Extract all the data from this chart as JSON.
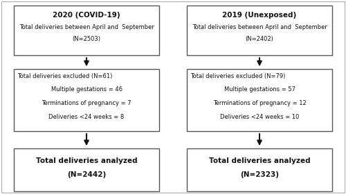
{
  "left_col": {
    "title": "2020 (COVID-19)",
    "box1_lines": [
      "Total deliveries between April and  September",
      "(N=2503)"
    ],
    "box2_line0": "Total deliveries excluded (N=61)",
    "box2_lines": [
      "Multiple gestations = 46",
      "Terminations of pregnancy = 7",
      "Deliveries <24 weeks = 8"
    ],
    "box3_lines": [
      "Total deliveries analyzed",
      "(N=2442)"
    ]
  },
  "right_col": {
    "title": "2019 (Unexposed)",
    "box1_lines": [
      "Total deliveries between April and  September",
      "(N=2402)"
    ],
    "box2_line0": "Total deliveries excluded (N=79)",
    "box2_lines": [
      "Multiple gestations = 57",
      "Terminations of pregnancy = 12",
      "Deliveries <24 weeks = 10"
    ],
    "box3_lines": [
      "Total deliveries analyzed",
      "(N=2323)"
    ]
  },
  "bg_color": "#ffffff",
  "box_facecolor": "#ffffff",
  "box_edgecolor": "#555555",
  "text_color": "#111111",
  "arrow_color": "#111111",
  "outer_border_color": "#aaaaaa",
  "title_fontsize": 7.0,
  "body_fontsize": 6.0,
  "bold_title_fontsize": 7.5
}
